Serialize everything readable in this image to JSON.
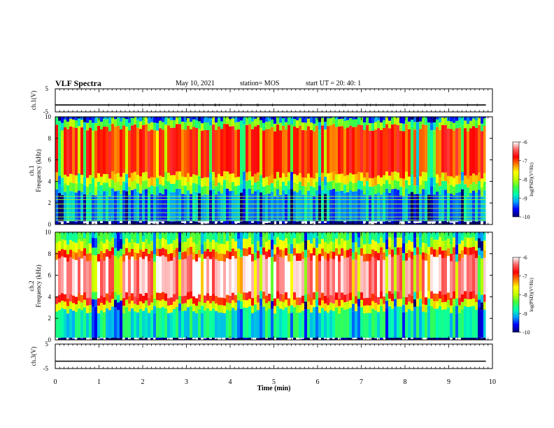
{
  "header": {
    "title": "VLF Spectra",
    "date": "May 10, 2021",
    "station": "station= MOS",
    "start_ut": "start  UT  =   20: 40: 1"
  },
  "colorbar": {
    "label": "log(PSD)(V²/Hz)",
    "ticks": [
      "-6",
      "-7",
      "-8",
      "-9",
      "-10"
    ],
    "range": [
      -10,
      -6
    ],
    "colors": [
      "#000070",
      "#0000ff",
      "#00a0ff",
      "#00ffb0",
      "#40ff40",
      "#c0ff00",
      "#ffff00",
      "#ff8000",
      "#ff0000",
      "#ff6060",
      "#ffffff"
    ]
  },
  "chart_data": [
    {
      "type": "line",
      "id": "ch1-voltage",
      "ylabel": "ch.1(V)",
      "yticks": [
        "5",
        "-5"
      ],
      "ylim": [
        -5,
        5
      ],
      "xlim": [
        0,
        10
      ],
      "series": [
        {
          "x": [
            0,
            9.85
          ],
          "values": [
            -2,
            -2
          ]
        }
      ]
    },
    {
      "type": "heatmap",
      "id": "ch1-spectrogram",
      "ylabel": "ch.1\nFrequency (kHz)",
      "yticks": [
        "0",
        "2",
        "4",
        "6",
        "8",
        "10"
      ],
      "ylim": [
        0,
        10
      ],
      "xlim": [
        0,
        10
      ],
      "data_end_min": 9.85,
      "bands": [
        {
          "from_khz": 0,
          "to_khz": 0.3,
          "log_psd": -10
        },
        {
          "from_khz": 0.3,
          "to_khz": 3.0,
          "log_psd": -9.2
        },
        {
          "from_khz": 3.0,
          "to_khz": 3.8,
          "log_psd": -8.4
        },
        {
          "from_khz": 3.8,
          "to_khz": 4.6,
          "log_psd": -7.6
        },
        {
          "from_khz": 4.6,
          "to_khz": 9.0,
          "log_psd": -6.9
        },
        {
          "from_khz": 9.0,
          "to_khz": 9.7,
          "log_psd": -8.3
        },
        {
          "from_khz": 9.7,
          "to_khz": 10,
          "log_psd": -9.4
        }
      ],
      "tones_khz": [
        0.4,
        0.7,
        1.1,
        1.5,
        1.9,
        2.3,
        2.6
      ]
    },
    {
      "type": "heatmap",
      "id": "ch2-spectrogram",
      "ylabel": "ch.2\nFrequency (kHz)",
      "yticks": [
        "0",
        "2",
        "4",
        "6",
        "8",
        "10"
      ],
      "ylim": [
        0,
        10
      ],
      "xlim": [
        0,
        10
      ],
      "data_end_min": 9.85,
      "bands": [
        {
          "from_khz": 0,
          "to_khz": 0.2,
          "log_psd": -10
        },
        {
          "from_khz": 0.2,
          "to_khz": 2.8,
          "log_psd": -8.8
        },
        {
          "from_khz": 2.8,
          "to_khz": 3.5,
          "log_psd": -7.8
        },
        {
          "from_khz": 3.5,
          "to_khz": 4.2,
          "log_psd": -6.8
        },
        {
          "from_khz": 4.2,
          "to_khz": 7.6,
          "log_psd": -6.2
        },
        {
          "from_khz": 7.6,
          "to_khz": 8.3,
          "log_psd": -7.0
        },
        {
          "from_khz": 8.3,
          "to_khz": 9.2,
          "log_psd": -7.9
        },
        {
          "from_khz": 9.2,
          "to_khz": 10,
          "log_psd": -8.6
        }
      ],
      "tones_khz": []
    },
    {
      "type": "line",
      "id": "ch3-voltage",
      "ylabel": "ch.3(V)",
      "xlabel": "Time (min)",
      "yticks": [
        "5",
        "-5"
      ],
      "ylim": [
        -5,
        5
      ],
      "xlim": [
        0,
        10
      ],
      "xticks": [
        "0",
        "1",
        "2",
        "3",
        "4",
        "5",
        "6",
        "7",
        "8",
        "9",
        "10"
      ],
      "series": [
        {
          "x": [
            0,
            9.85
          ],
          "values": [
            -2,
            -2
          ]
        }
      ]
    }
  ]
}
